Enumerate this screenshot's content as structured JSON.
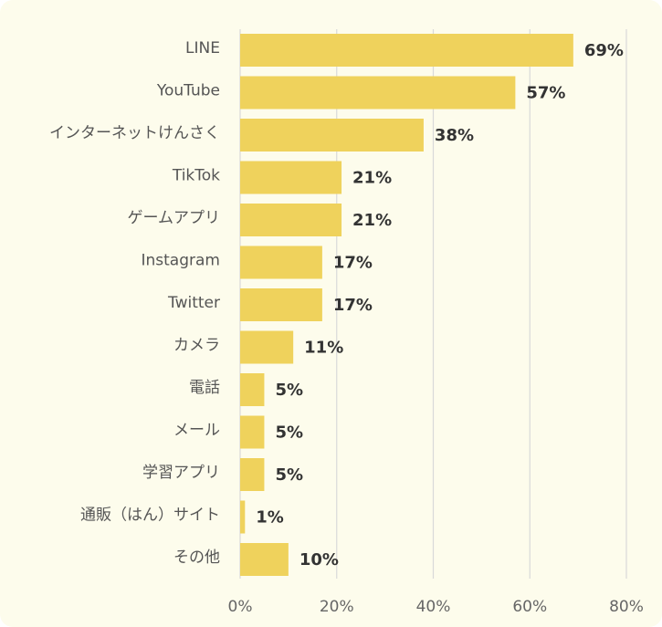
{
  "colors": {
    "background": "#fdfcec",
    "bar": "#efd25c",
    "grid": "#d9d9d9",
    "label": "#555555",
    "value": "#333333"
  },
  "chart_data": {
    "type": "bar",
    "orientation": "horizontal",
    "title": "",
    "xlabel": "",
    "ylabel": "",
    "categories": [
      "LINE",
      "YouTube",
      "インターネットけんさく",
      "TikTok",
      "ゲームアプリ",
      "Instagram",
      "Twitter",
      "カメラ",
      "電話",
      "メール",
      "学習アプリ",
      "通販（はん）サイト",
      "その他"
    ],
    "values": [
      69,
      57,
      38,
      21,
      21,
      17,
      17,
      11,
      5,
      5,
      5,
      1,
      10
    ],
    "value_labels": [
      "69%",
      "57%",
      "38%",
      "21%",
      "21%",
      "17%",
      "17%",
      "11%",
      "5%",
      "5%",
      "5%",
      "1%",
      "10%"
    ],
    "xlim": [
      0,
      80
    ],
    "x_ticks": [
      0,
      20,
      40,
      60,
      80
    ],
    "x_tick_labels": [
      "0%",
      "20%",
      "40%",
      "60%",
      "80%"
    ],
    "grid": true,
    "legend": "none"
  }
}
